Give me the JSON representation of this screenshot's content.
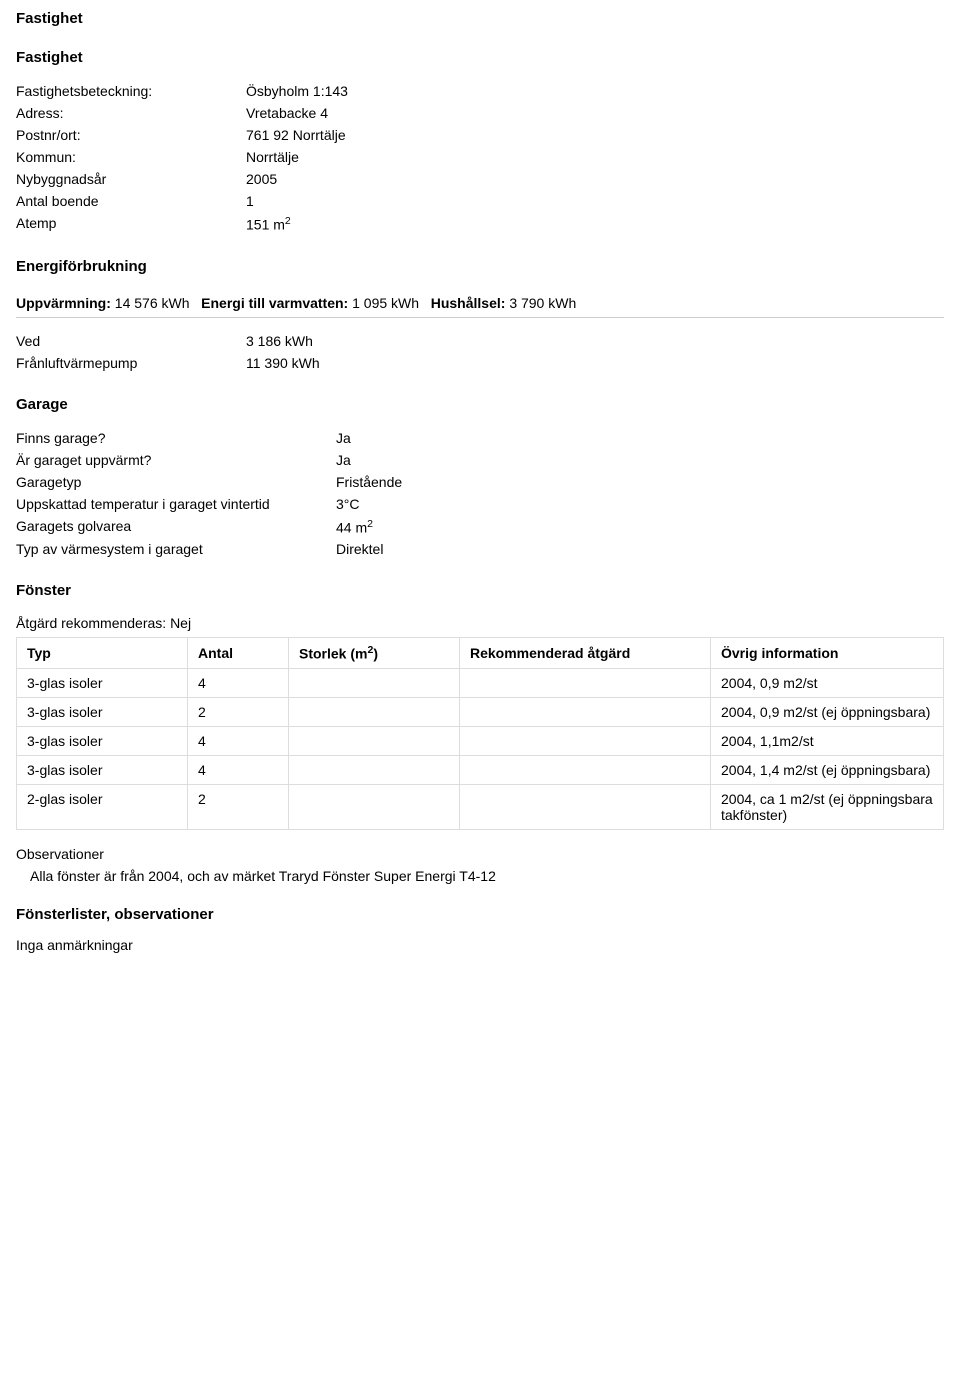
{
  "headings": {
    "fastighet_main": "Fastighet",
    "fastighet_sub": "Fastighet",
    "energiforbrukning": "Energiförbrukning",
    "garage": "Garage",
    "fonster": "Fönster",
    "observationer": "Observationer",
    "fonsterlister": "Fönsterlister, observationer"
  },
  "fastighet": {
    "labels": {
      "beteckning": "Fastighetsbeteckning:",
      "adress": "Adress:",
      "postort": "Postnr/ort:",
      "kommun": "Kommun:",
      "nybyggnadsar": "Nybyggnadsår",
      "antal_boende": "Antal boende",
      "atemp": "Atemp"
    },
    "values": {
      "beteckning": "Ösbyholm 1:143",
      "adress": "Vretabacke 4",
      "postort": "761 92 Norrtälje",
      "kommun": "Norrtälje",
      "nybyggnadsar": "2005",
      "antal_boende": "1",
      "atemp_num": "151 m",
      "atemp_sup": "2"
    }
  },
  "energi": {
    "summary": {
      "uppvarmning_label": "Uppvärmning:",
      "uppvarmning_value": "14 576 kWh",
      "varmvatten_label": "Energi till varmvatten:",
      "varmvatten_value": "1 095 kWh",
      "hushallsel_label": "Hushållsel:",
      "hushallsel_value": "3 790 kWh"
    },
    "rows": [
      {
        "label": "Ved",
        "value": "3 186 kWh"
      },
      {
        "label": "Frånluftvärmepump",
        "value": "11 390 kWh"
      }
    ]
  },
  "garage": {
    "rows": [
      {
        "label": "Finns garage?",
        "value": "Ja"
      },
      {
        "label": "Är garaget uppvärmt?",
        "value": "Ja"
      },
      {
        "label": "Garagetyp",
        "value": "Fristående"
      },
      {
        "label": "Uppskattad temperatur i garaget vintertid",
        "value": "3°C"
      },
      {
        "label": "Garagets golvarea",
        "value": "44 m",
        "sup": "2"
      },
      {
        "label": "Typ av värmesystem i garaget",
        "value": "Direktel"
      }
    ],
    "label_col_width": 320
  },
  "fonster": {
    "atgard_label": "Åtgärd rekommenderas: Nej",
    "headers": {
      "typ": "Typ",
      "antal": "Antal",
      "storlek_pre": "Storlek (m",
      "storlek_sup": "2",
      "storlek_post": ")",
      "rek": "Rekommenderad åtgärd",
      "ovrig": "Övrig information"
    },
    "rows": [
      {
        "typ": "3-glas isoler",
        "antal": "4",
        "storlek": "",
        "rek": "",
        "ovrig": "2004, 0,9 m2/st"
      },
      {
        "typ": "3-glas isoler",
        "antal": "2",
        "storlek": "",
        "rek": "",
        "ovrig": "2004, 0,9 m2/st (ej öppningsbara)"
      },
      {
        "typ": "3-glas isoler",
        "antal": "4",
        "storlek": "",
        "rek": "",
        "ovrig": "2004, 1,1m2/st"
      },
      {
        "typ": "3-glas isoler",
        "antal": "4",
        "storlek": "",
        "rek": "",
        "ovrig": "2004, 1,4 m2/st (ej öppningsbara)"
      },
      {
        "typ": "2-glas isoler",
        "antal": "2",
        "storlek": "",
        "rek": "",
        "ovrig": "2004, ca 1 m2/st (ej öppningsbara takfönster)"
      }
    ],
    "col_widths": {
      "typ": 150,
      "antal": 80,
      "storlek": 150,
      "rek": 230
    },
    "observation_text": "Alla fönster är från 2004, och av märket Traryd Fönster Super Energi T4-12",
    "fonsterlister_text": "Inga anmärkningar"
  }
}
